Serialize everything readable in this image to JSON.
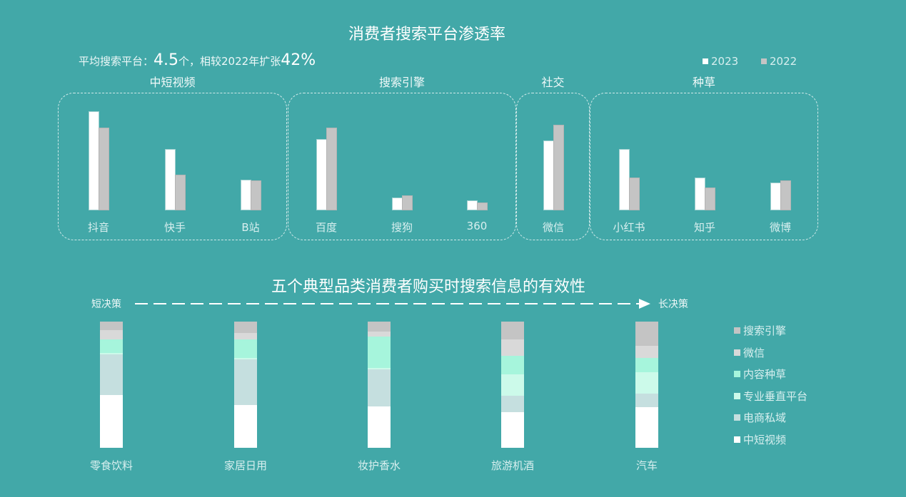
{
  "chart_data": [
    {
      "type": "bar",
      "title": "消费者搜索平台渗透率",
      "subtitle_parts": [
        "平均搜索平台：",
        "4.5",
        "个，相较2022年扩张",
        "42%"
      ],
      "legend_position": "top-right",
      "groups": [
        {
          "label": "中短视频",
          "categories": [
            "抖音",
            "快手",
            "B站"
          ]
        },
        {
          "label": "搜索引擎",
          "categories": [
            "百度",
            "搜狗",
            "360"
          ]
        },
        {
          "label": "社交",
          "categories": [
            "微信"
          ]
        },
        {
          "label": "种草",
          "categories": [
            "小红书",
            "知乎",
            "微博"
          ]
        }
      ],
      "categories": [
        "抖音",
        "快手",
        "B站",
        "百度",
        "搜狗",
        "360",
        "微信",
        "小红书",
        "知乎",
        "微博"
      ],
      "series": [
        {
          "name": "2023",
          "color": "#ffffff",
          "values": [
            139,
            86,
            43,
            100,
            18,
            14,
            98,
            86,
            46,
            39
          ]
        },
        {
          "name": "2022",
          "color": "#c4c4c4",
          "values": [
            116,
            50,
            42,
            116,
            21,
            11,
            120,
            46,
            32,
            42
          ]
        }
      ],
      "value_note": "relative bar heights; no axis printed"
    },
    {
      "type": "bar",
      "stacked": true,
      "title": "五个典型品类消费者购买时搜索信息的有效性",
      "arrow_left": "短决策",
      "arrow_right": "长决策",
      "legend_position": "right",
      "categories": [
        "零食饮料",
        "家居日用",
        "妆护香水",
        "旅游机酒",
        "汽车"
      ],
      "series": [
        {
          "name": "中短视频",
          "color": "#ffffff",
          "values": [
            42,
            34,
            33,
            28,
            32
          ]
        },
        {
          "name": "电商私域",
          "color": "#c5dfdf",
          "values": [
            32,
            36,
            29,
            13,
            11
          ]
        },
        {
          "name": "专业垂直平台",
          "color": "#ccfaea",
          "values": [
            1,
            1,
            1,
            17,
            17
          ]
        },
        {
          "name": "内容种草",
          "color": "#a6f5dc",
          "values": [
            11,
            15,
            25,
            15,
            11
          ]
        },
        {
          "name": "微信",
          "color": "#d9d9d9",
          "values": [
            7,
            5,
            4,
            13,
            10
          ]
        },
        {
          "name": "搜索引擎",
          "color": "#c4c4c4",
          "values": [
            7,
            9,
            8,
            14,
            19
          ]
        }
      ],
      "legend_order": [
        "搜索引擎",
        "微信",
        "内容种草",
        "专业垂直平台",
        "电商私域",
        "中短视频"
      ]
    }
  ]
}
